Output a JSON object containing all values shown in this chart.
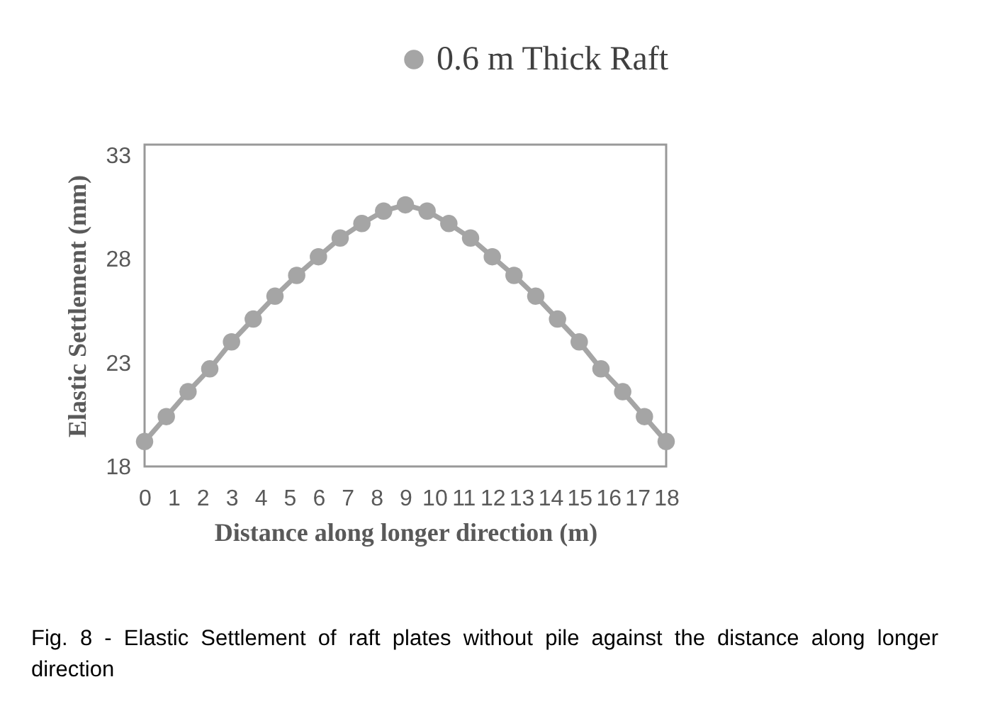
{
  "chart_data": {
    "type": "line",
    "xlabel": "Distance along longer direction (m)",
    "ylabel": "Elastic Settlement (mm)",
    "x": [
      0,
      0.75,
      1.5,
      2.25,
      3,
      3.75,
      4.5,
      5.25,
      6,
      6.75,
      7.5,
      8.25,
      9,
      9.75,
      10.5,
      11.25,
      12,
      12.75,
      13.5,
      14.25,
      15,
      15.75,
      16.5,
      17.25,
      18
    ],
    "series": [
      {
        "name": "0.6 m Thick Raft",
        "color": "#a5a5a5",
        "values": [
          19.2,
          20.4,
          21.6,
          22.7,
          24.0,
          25.1,
          26.2,
          27.2,
          28.1,
          29.0,
          29.7,
          30.3,
          30.6,
          30.3,
          29.7,
          29.0,
          28.1,
          27.2,
          26.2,
          25.1,
          24.0,
          22.7,
          21.6,
          20.4,
          19.2
        ]
      }
    ],
    "xlim": [
      0,
      18
    ],
    "xticks": [
      0,
      1,
      2,
      3,
      4,
      5,
      6,
      7,
      8,
      9,
      10,
      11,
      12,
      13,
      14,
      15,
      16,
      17,
      18
    ],
    "ylim": [
      18,
      33.5
    ],
    "yticks": [
      18,
      23,
      28,
      33
    ],
    "grid": false,
    "legend": "top right",
    "marker": "circle",
    "line_style": "solid",
    "annotations": [
      "Fig. 8 - Elastic Settlement of raft plates without pile against the distance along longer direction"
    ]
  }
}
